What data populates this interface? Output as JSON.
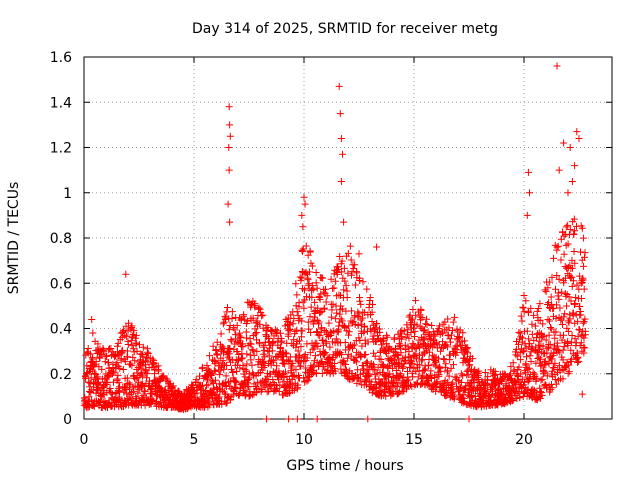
{
  "chart_data": {
    "type": "scatter",
    "title": "Day 314 of 2025, SRMTID for receiver metg",
    "xlabel": "GPS time / hours",
    "ylabel": "SRMTID / TECUs",
    "xlim": [
      0,
      24
    ],
    "ylim": [
      0,
      1.6
    ],
    "grid": true,
    "marker": "+",
    "color": "#ff0000",
    "x_ticks": [
      {
        "value": 0,
        "label": "0"
      },
      {
        "value": 5,
        "label": "5"
      },
      {
        "value": 10,
        "label": "10"
      },
      {
        "value": 15,
        "label": "15"
      },
      {
        "value": 20,
        "label": "20"
      }
    ],
    "y_ticks": [
      {
        "value": 0,
        "label": "0"
      },
      {
        "value": 0.2,
        "label": "0.2"
      },
      {
        "value": 0.4,
        "label": "0.4"
      },
      {
        "value": 0.6,
        "label": "0.6"
      },
      {
        "value": 0.8,
        "label": "0.8"
      },
      {
        "value": 1.0,
        "label": "1"
      },
      {
        "value": 1.2,
        "label": "1.2"
      },
      {
        "value": 1.4,
        "label": "1.4"
      },
      {
        "value": 1.6,
        "label": "1.6"
      }
    ],
    "envelope": [
      [
        0.0,
        0.05,
        0.3
      ],
      [
        0.5,
        0.05,
        0.35
      ],
      [
        1.0,
        0.05,
        0.3
      ],
      [
        1.5,
        0.05,
        0.35
      ],
      [
        2.0,
        0.06,
        0.45
      ],
      [
        2.5,
        0.06,
        0.35
      ],
      [
        3.0,
        0.06,
        0.3
      ],
      [
        3.5,
        0.05,
        0.22
      ],
      [
        4.0,
        0.05,
        0.15
      ],
      [
        4.5,
        0.04,
        0.12
      ],
      [
        5.0,
        0.05,
        0.16
      ],
      [
        5.5,
        0.05,
        0.25
      ],
      [
        6.0,
        0.06,
        0.35
      ],
      [
        6.5,
        0.07,
        0.5
      ],
      [
        7.0,
        0.1,
        0.45
      ],
      [
        7.5,
        0.1,
        0.55
      ],
      [
        8.0,
        0.12,
        0.5
      ],
      [
        8.5,
        0.12,
        0.4
      ],
      [
        9.0,
        0.1,
        0.4
      ],
      [
        9.5,
        0.12,
        0.6
      ],
      [
        10.0,
        0.15,
        0.8
      ],
      [
        10.5,
        0.2,
        0.7
      ],
      [
        11.0,
        0.2,
        0.6
      ],
      [
        11.5,
        0.2,
        0.7
      ],
      [
        12.0,
        0.18,
        0.8
      ],
      [
        12.5,
        0.15,
        0.65
      ],
      [
        13.0,
        0.12,
        0.55
      ],
      [
        13.5,
        0.1,
        0.4
      ],
      [
        14.0,
        0.1,
        0.35
      ],
      [
        14.5,
        0.12,
        0.4
      ],
      [
        15.0,
        0.15,
        0.55
      ],
      [
        15.5,
        0.15,
        0.45
      ],
      [
        16.0,
        0.12,
        0.4
      ],
      [
        16.5,
        0.1,
        0.45
      ],
      [
        17.0,
        0.08,
        0.45
      ],
      [
        17.5,
        0.06,
        0.3
      ],
      [
        18.0,
        0.05,
        0.2
      ],
      [
        18.5,
        0.06,
        0.22
      ],
      [
        19.0,
        0.06,
        0.2
      ],
      [
        19.5,
        0.08,
        0.25
      ],
      [
        20.0,
        0.1,
        0.55
      ],
      [
        20.5,
        0.08,
        0.45
      ],
      [
        21.0,
        0.1,
        0.6
      ],
      [
        21.5,
        0.15,
        0.8
      ],
      [
        22.0,
        0.2,
        0.9
      ],
      [
        22.5,
        0.25,
        0.9
      ],
      [
        22.8,
        0.3,
        0.8
      ]
    ],
    "spikes": [
      [
        6.55,
        0.95
      ],
      [
        6.6,
        1.38
      ],
      [
        6.62,
        1.3
      ],
      [
        6.65,
        1.25
      ],
      [
        6.58,
        1.2
      ],
      [
        6.6,
        1.1
      ],
      [
        6.62,
        0.87
      ],
      [
        10.0,
        0.98
      ],
      [
        10.05,
        0.95
      ],
      [
        9.9,
        0.9
      ],
      [
        9.95,
        0.85
      ],
      [
        11.6,
        1.47
      ],
      [
        11.65,
        1.35
      ],
      [
        11.7,
        1.24
      ],
      [
        11.75,
        1.17
      ],
      [
        11.7,
        1.05
      ],
      [
        11.8,
        0.87
      ],
      [
        20.2,
        1.09
      ],
      [
        20.25,
        1.0
      ],
      [
        20.15,
        0.9
      ],
      [
        21.5,
        1.56
      ],
      [
        21.6,
        1.1
      ],
      [
        21.8,
        1.22
      ],
      [
        22.1,
        1.2
      ],
      [
        22.4,
        1.27
      ],
      [
        22.5,
        1.24
      ],
      [
        22.3,
        1.12
      ],
      [
        22.2,
        1.05
      ],
      [
        22.0,
        1.0
      ],
      [
        22.6,
        0.6
      ],
      [
        22.65,
        0.11
      ],
      [
        0.35,
        0.44
      ],
      [
        0.4,
        0.38
      ],
      [
        1.9,
        0.64
      ],
      [
        13.3,
        0.76
      ],
      [
        12.5,
        0.73
      ]
    ],
    "baseline_points": [
      [
        8.3,
        0.0
      ],
      [
        9.3,
        0.0
      ],
      [
        9.7,
        0.0
      ],
      [
        10.6,
        0.0
      ],
      [
        12.9,
        0.0
      ],
      [
        17.5,
        0.0
      ]
    ]
  }
}
